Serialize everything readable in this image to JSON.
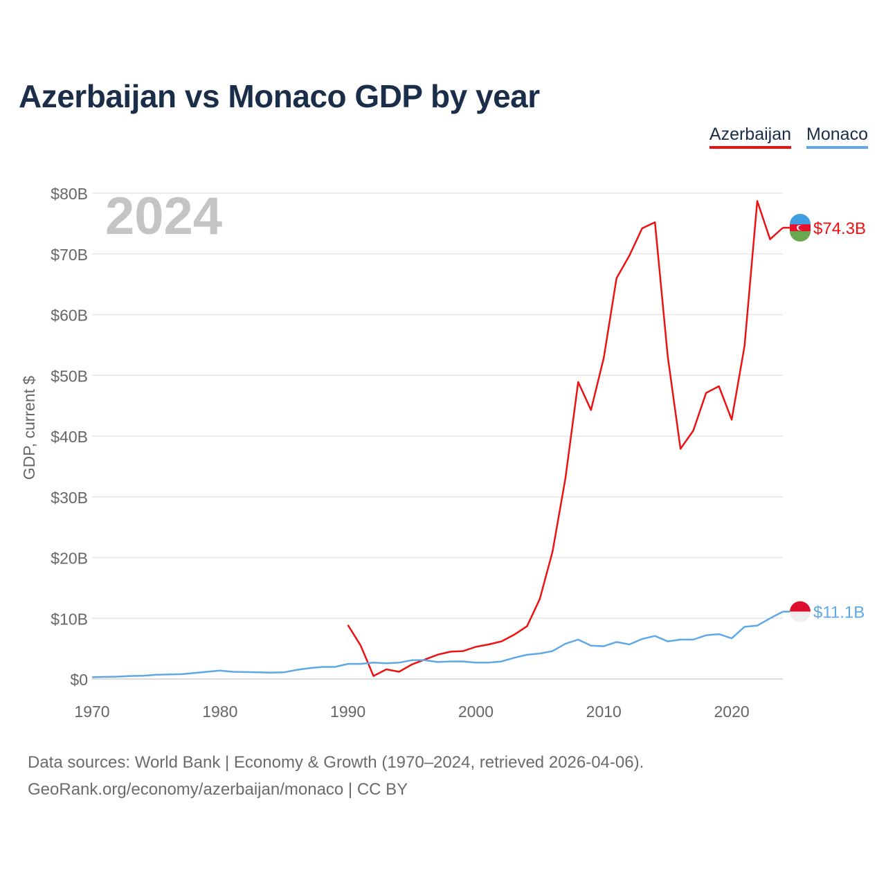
{
  "title": "Azerbaijan vs Monaco GDP by year",
  "year_label": "2024",
  "source": {
    "line1": "Data sources: World Bank | Economy & Growth (1970–2024, retrieved 2026-04-06).",
    "line2": "GeoRank.org/economy/azerbaijan/monaco | CC BY"
  },
  "chart_data": {
    "type": "line",
    "title": "Azerbaijan vs Monaco GDP by year",
    "xlabel": "",
    "ylabel": "GDP, current $",
    "xlim": [
      1970,
      2024
    ],
    "ylim": [
      0,
      80
    ],
    "x_ticks": [
      1970,
      1980,
      1990,
      2000,
      2010,
      2020
    ],
    "x_tick_labels": [
      "1970",
      "1980",
      "1990",
      "2000",
      "2010",
      "2020"
    ],
    "y_ticks": [
      0,
      10,
      20,
      30,
      40,
      50,
      60,
      70,
      80
    ],
    "y_tick_labels": [
      "$0",
      "$10B",
      "$20B",
      "$30B",
      "$40B",
      "$50B",
      "$60B",
      "$70B",
      "$80B"
    ],
    "grid": true,
    "legend": "top-right",
    "series": [
      {
        "name": "Azerbaijan",
        "color": "#ee1111",
        "end_label": "$74.3B",
        "x": [
          1990,
          1991,
          1992,
          1993,
          1994,
          1995,
          1996,
          1997,
          1998,
          1999,
          2000,
          2001,
          2002,
          2003,
          2004,
          2005,
          2006,
          2007,
          2008,
          2009,
          2010,
          2011,
          2012,
          2013,
          2014,
          2015,
          2016,
          2017,
          2018,
          2019,
          2020,
          2021,
          2022,
          2023,
          2024
        ],
        "values": [
          8.9,
          5.5,
          0.5,
          1.6,
          1.2,
          2.4,
          3.2,
          4.0,
          4.5,
          4.6,
          5.3,
          5.7,
          6.2,
          7.3,
          8.7,
          13.2,
          21.0,
          33.0,
          48.9,
          44.3,
          52.9,
          66.0,
          69.7,
          74.2,
          75.2,
          53.1,
          37.9,
          40.9,
          47.1,
          48.2,
          42.7,
          54.8,
          78.7,
          72.4,
          74.3
        ]
      },
      {
        "name": "Monaco",
        "color": "#5fa8e8",
        "end_label": "$11.1B",
        "x": [
          1970,
          1971,
          1972,
          1973,
          1974,
          1975,
          1976,
          1977,
          1978,
          1979,
          1980,
          1981,
          1982,
          1983,
          1984,
          1985,
          1986,
          1987,
          1988,
          1989,
          1990,
          1991,
          1992,
          1993,
          1994,
          1995,
          1996,
          1997,
          1998,
          1999,
          2000,
          2001,
          2002,
          2003,
          2004,
          2005,
          2006,
          2007,
          2008,
          2009,
          2010,
          2011,
          2012,
          2013,
          2014,
          2015,
          2016,
          2017,
          2018,
          2019,
          2020,
          2021,
          2022,
          2023,
          2024
        ],
        "values": [
          0.3,
          0.35,
          0.4,
          0.5,
          0.55,
          0.7,
          0.75,
          0.8,
          1.0,
          1.2,
          1.4,
          1.2,
          1.15,
          1.1,
          1.05,
          1.1,
          1.5,
          1.8,
          2.0,
          2.0,
          2.5,
          2.5,
          2.7,
          2.6,
          2.7,
          3.1,
          3.1,
          2.8,
          2.9,
          2.9,
          2.7,
          2.7,
          2.9,
          3.5,
          4.0,
          4.2,
          4.6,
          5.8,
          6.5,
          5.5,
          5.4,
          6.1,
          5.7,
          6.6,
          7.1,
          6.2,
          6.5,
          6.5,
          7.2,
          7.4,
          6.7,
          8.6,
          8.8,
          10.0,
          11.1
        ]
      }
    ]
  }
}
